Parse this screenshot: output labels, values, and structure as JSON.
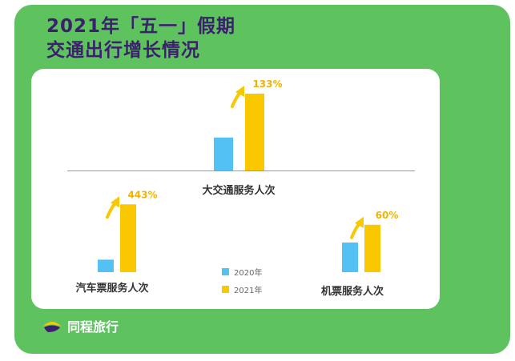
{
  "title_lines": [
    "2021年「五一」假期",
    "交通出行增长情况"
  ],
  "brand": "同程旅行",
  "colors": {
    "panel": "#5ec25f",
    "title": "#3c1f6e",
    "series_2020": "#54c1f5",
    "series_2021": "#f9c800",
    "growth_text": "#f0b400"
  },
  "legend": [
    "2020年",
    "2021年"
  ],
  "chart_data": [
    {
      "type": "bar",
      "title": "大交通服务人次",
      "series": [
        {
          "name": "2020年",
          "values": [
            1
          ]
        },
        {
          "name": "2021年",
          "values": [
            2.33
          ]
        }
      ],
      "growth_label": "133%"
    },
    {
      "type": "bar",
      "title": "汽车票服务人次",
      "series": [
        {
          "name": "2020年",
          "values": [
            1
          ]
        },
        {
          "name": "2021年",
          "values": [
            5.43
          ]
        }
      ],
      "growth_label": "443%"
    },
    {
      "type": "bar",
      "title": "机票服务人次",
      "series": [
        {
          "name": "2020年",
          "values": [
            1
          ]
        },
        {
          "name": "2021年",
          "values": [
            1.6
          ]
        }
      ],
      "growth_label": "60%"
    }
  ]
}
